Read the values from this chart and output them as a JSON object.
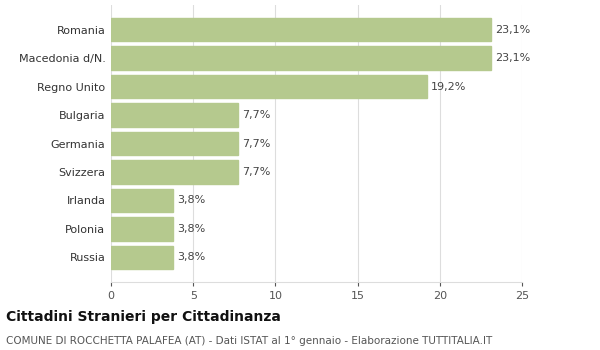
{
  "categories": [
    "Russia",
    "Polonia",
    "Irlanda",
    "Svizzera",
    "Germania",
    "Bulgaria",
    "Regno Unito",
    "Macedonia d/N.",
    "Romania"
  ],
  "values": [
    3.8,
    3.8,
    3.8,
    7.7,
    7.7,
    7.7,
    19.2,
    23.1,
    23.1
  ],
  "labels": [
    "3,8%",
    "3,8%",
    "3,8%",
    "7,7%",
    "7,7%",
    "7,7%",
    "19,2%",
    "23,1%",
    "23,1%"
  ],
  "bar_color": "#b5c98e",
  "bar_edge_color": "#b5c98e",
  "background_color": "#ffffff",
  "title": "Cittadini Stranieri per Cittadinanza",
  "subtitle": "COMUNE DI ROCCHETTA PALAFEA (AT) - Dati ISTAT al 1° gennaio - Elaborazione TUTTITALIA.IT",
  "xlim": [
    0,
    25
  ],
  "xticks": [
    0,
    5,
    10,
    15,
    20,
    25
  ],
  "title_fontsize": 10,
  "subtitle_fontsize": 7.5,
  "tick_fontsize": 8,
  "label_fontsize": 8,
  "grid_color": "#dddddd",
  "bar_height": 0.82
}
